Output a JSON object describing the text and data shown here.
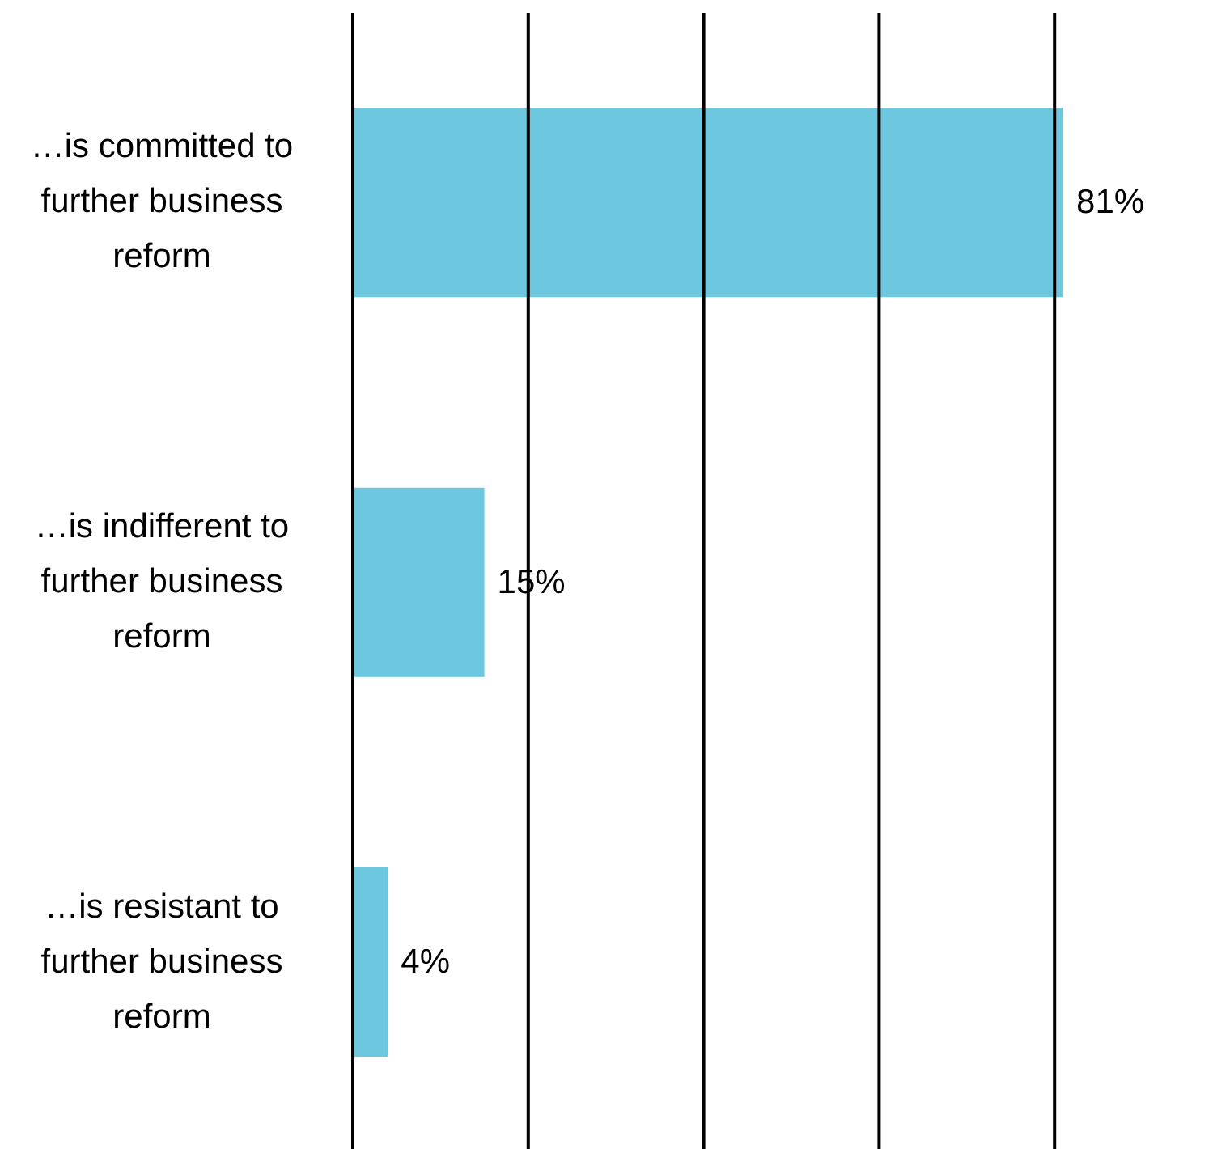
{
  "chart_data": {
    "type": "bar",
    "orientation": "horizontal",
    "categories": [
      "…is committed to further business reform",
      "…is indifferent to further business reform",
      "…is resistant to further business reform"
    ],
    "values": [
      81,
      15,
      4
    ],
    "value_labels": [
      "81%",
      "15%",
      "4%"
    ],
    "color": "#6dc8df",
    "xlim": [
      0,
      100
    ],
    "xticks": [
      {
        "value": 0,
        "label": null
      },
      {
        "value": 20,
        "label": null
      },
      {
        "value": 40,
        "label": null
      },
      {
        "value": 60,
        "label": null
      },
      {
        "value": 80,
        "label": null
      }
    ],
    "grid": "x",
    "tick_labels": "y"
  }
}
